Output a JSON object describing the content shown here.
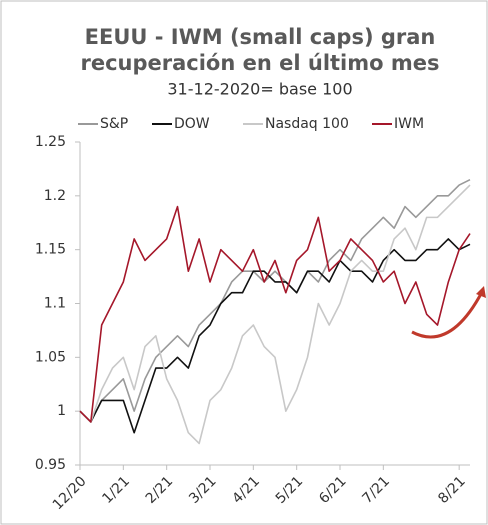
{
  "chart_data": {
    "type": "line",
    "title": [
      "EEUU - IWM (small caps) gran",
      "recuperación en el último mes"
    ],
    "subtitle": "31-12-2020= base 100",
    "categories": [
      "12/20",
      null,
      null,
      null,
      "1/21",
      null,
      null,
      null,
      "2/21",
      null,
      null,
      null,
      "3/21",
      null,
      null,
      null,
      "4/21",
      null,
      null,
      null,
      "5/21",
      null,
      null,
      null,
      "6/21",
      null,
      null,
      null,
      "7/21",
      null,
      null,
      null,
      null,
      null,
      null,
      "8/21",
      null
    ],
    "series": [
      {
        "name": "S&P",
        "color": "#999999",
        "values": [
          1.0,
          0.99,
          1.01,
          1.02,
          1.03,
          1.0,
          1.03,
          1.05,
          1.06,
          1.07,
          1.06,
          1.08,
          1.09,
          1.1,
          1.12,
          1.13,
          1.13,
          1.12,
          1.13,
          1.12,
          1.11,
          1.13,
          1.12,
          1.14,
          1.15,
          1.14,
          1.16,
          1.17,
          1.18,
          1.17,
          1.19,
          1.18,
          1.19,
          1.2,
          1.2,
          1.21,
          1.215
        ]
      },
      {
        "name": "DOW",
        "color": "#111111",
        "values": [
          1.0,
          0.99,
          1.01,
          1.01,
          1.01,
          0.98,
          1.01,
          1.04,
          1.04,
          1.05,
          1.04,
          1.07,
          1.08,
          1.1,
          1.11,
          1.11,
          1.13,
          1.13,
          1.12,
          1.12,
          1.11,
          1.13,
          1.13,
          1.12,
          1.14,
          1.13,
          1.13,
          1.12,
          1.14,
          1.15,
          1.14,
          1.14,
          1.15,
          1.15,
          1.16,
          1.15,
          1.155
        ]
      },
      {
        "name": "Nasdaq 100",
        "color": "#c8c8c8",
        "values": [
          1.0,
          0.99,
          1.02,
          1.04,
          1.05,
          1.02,
          1.06,
          1.07,
          1.03,
          1.01,
          0.98,
          0.97,
          1.01,
          1.02,
          1.04,
          1.07,
          1.08,
          1.06,
          1.05,
          1.0,
          1.02,
          1.05,
          1.1,
          1.08,
          1.1,
          1.13,
          1.14,
          1.13,
          1.13,
          1.16,
          1.17,
          1.15,
          1.18,
          1.18,
          1.19,
          1.2,
          1.21
        ]
      },
      {
        "name": "IWM",
        "color": "#a5172a",
        "values": [
          1.0,
          0.99,
          1.08,
          1.1,
          1.12,
          1.16,
          1.14,
          1.15,
          1.16,
          1.19,
          1.13,
          1.16,
          1.12,
          1.15,
          1.14,
          1.13,
          1.15,
          1.12,
          1.14,
          1.11,
          1.14,
          1.15,
          1.18,
          1.13,
          1.14,
          1.16,
          1.15,
          1.14,
          1.12,
          1.13,
          1.1,
          1.12,
          1.09,
          1.08,
          1.12,
          1.15,
          1.165
        ]
      }
    ],
    "ylim": [
      0.95,
      1.25
    ],
    "yticks": [
      0.95,
      1,
      1.05,
      1.1,
      1.15,
      1.2,
      1.25
    ]
  }
}
